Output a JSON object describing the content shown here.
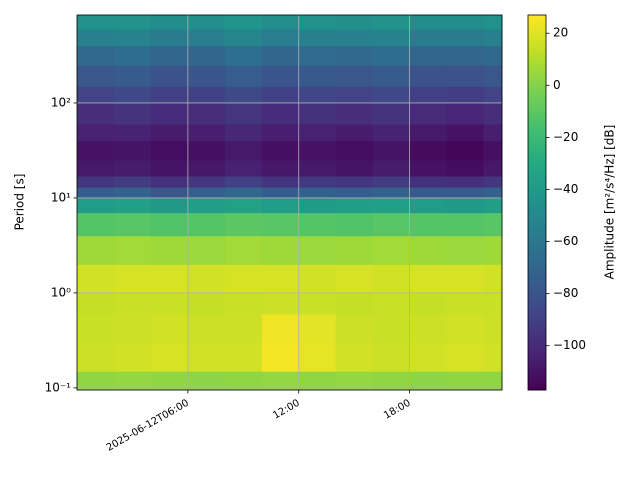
{
  "chart_data": {
    "type": "heatmap",
    "xlabel": null,
    "ylabel": "Period [s]",
    "colorbar_label": "Amplitude [m²/s⁴/Hz] [dB]",
    "x": [
      "2025-06-12T00:00",
      "2025-06-12T02:00",
      "2025-06-12T04:00",
      "2025-06-12T06:00",
      "2025-06-12T08:00",
      "2025-06-12T10:00",
      "2025-06-12T12:00",
      "2025-06-12T14:00",
      "2025-06-12T16:00",
      "2025-06-12T18:00",
      "2025-06-12T20:00",
      "2025-06-12T22:00"
    ],
    "xlim": [
      "2025-06-12T00:00",
      "2025-06-12T23:00"
    ],
    "xticks": [
      "2025-06-12T06:00",
      {
        "value": "2025-06-12T12:00",
        "label": "12:00"
      },
      {
        "value": "2025-06-12T18:00",
        "label": "18:00"
      }
    ],
    "y": [
      0.095,
      0.15,
      0.3,
      0.6,
      1,
      2,
      4,
      7,
      10,
      13,
      17,
      25,
      40,
      60,
      100,
      150,
      250,
      400,
      600
    ],
    "ylim": [
      0.095,
      843
    ],
    "ylog": true,
    "yticks": [
      {
        "value": 0.1,
        "label": "10⁻¹"
      },
      {
        "value": 1,
        "label": "10⁰"
      },
      {
        "value": 10,
        "label": "10¹"
      },
      {
        "value": 100,
        "label": "10²"
      }
    ],
    "grid": true,
    "colormap": "viridis",
    "clim": [
      -117,
      27
    ],
    "cticks": [
      {
        "value": -100,
        "label": "−100"
      },
      {
        "value": -80,
        "label": "−80"
      },
      {
        "value": -60,
        "label": "−60"
      },
      {
        "value": -40,
        "label": "−40"
      },
      {
        "value": -20,
        "label": "−20"
      },
      0,
      20
    ],
    "values": [
      [
        3,
        4,
        3,
        2,
        3,
        4,
        3,
        4,
        3,
        2,
        3,
        3
      ],
      [
        16,
        17,
        18,
        17,
        17,
        25,
        22,
        17,
        16,
        17,
        18,
        17
      ],
      [
        15,
        16,
        17,
        16,
        16,
        24,
        21,
        16,
        15,
        16,
        17,
        16
      ],
      [
        14,
        15,
        15,
        14,
        15,
        16,
        15,
        14,
        15,
        14,
        15,
        15
      ],
      [
        17,
        18,
        18,
        17,
        18,
        18,
        17,
        18,
        17,
        18,
        18,
        17
      ],
      [
        6,
        7,
        6,
        5,
        7,
        6,
        5,
        6,
        7,
        6,
        5,
        6
      ],
      [
        -12,
        -11,
        -13,
        -12,
        -10,
        -11,
        -12,
        -13,
        -11,
        -12,
        -12,
        -11
      ],
      [
        -38,
        -36,
        -40,
        -37,
        -35,
        -38,
        -39,
        -37,
        -36,
        -38,
        -40,
        -37
      ],
      [
        -75,
        -72,
        -78,
        -74,
        -70,
        -76,
        -73,
        -75,
        -72,
        -77,
        -76,
        -74
      ],
      [
        -95,
        -92,
        -97,
        -94,
        -90,
        -96,
        -93,
        -95,
        -92,
        -97,
        -98,
        -94
      ],
      [
        -107,
        -106,
        -109,
        -108,
        -104,
        -108,
        -107,
        -109,
        -106,
        -110,
        -112,
        -108
      ],
      [
        -110,
        -109,
        -112,
        -111,
        -107,
        -111,
        -110,
        -112,
        -109,
        -113,
        -115,
        -111
      ],
      [
        -104,
        -103,
        -106,
        -105,
        -101,
        -105,
        -104,
        -106,
        -103,
        -107,
        -110,
        -105
      ],
      [
        -98,
        -96,
        -99,
        -98,
        -95,
        -99,
        -97,
        -98,
        -96,
        -100,
        -102,
        -98
      ],
      [
        -88,
        -86,
        -90,
        -89,
        -85,
        -89,
        -87,
        -88,
        -86,
        -90,
        -91,
        -88
      ],
      [
        -78,
        -76,
        -80,
        -79,
        -75,
        -79,
        -77,
        -78,
        -76,
        -80,
        -81,
        -78
      ],
      [
        -68,
        -66,
        -70,
        -69,
        -65,
        -69,
        -67,
        -68,
        -66,
        -70,
        -70,
        -68
      ],
      [
        -55,
        -53,
        -57,
        -56,
        -52,
        -56,
        -54,
        -55,
        -53,
        -57,
        -57,
        -55
      ],
      [
        -45,
        -44,
        -47,
        -46,
        -43,
        -46,
        -45,
        -46,
        -44,
        -47,
        -47,
        -45
      ]
    ]
  }
}
